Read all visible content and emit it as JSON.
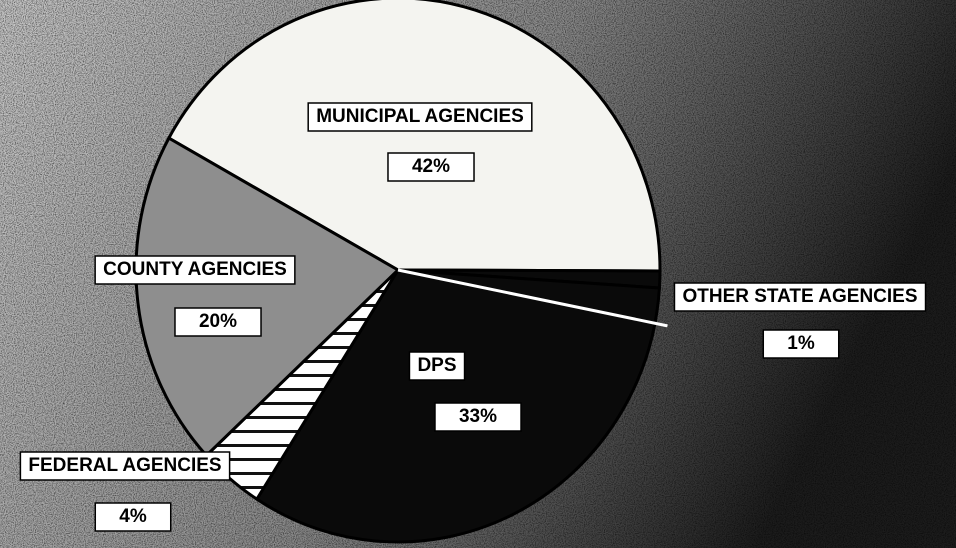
{
  "chart_data": {
    "type": "pie",
    "categories": [
      "MUNICIPAL AGENCIES",
      "OTHER STATE AGENCIES",
      "DPS",
      "FEDERAL AGENCIES",
      "COUNTY AGENCIES"
    ],
    "values": [
      42,
      1,
      33,
      4,
      20
    ],
    "value_labels": [
      "42%",
      "1%",
      "33%",
      "4%",
      "20%"
    ],
    "colors": [
      "#f4f4f0",
      "#0a0a0a",
      "#0a0a0a",
      "#ffffff",
      "#8e8e8e"
    ],
    "hatch": [
      false,
      false,
      false,
      true,
      false
    ]
  }
}
